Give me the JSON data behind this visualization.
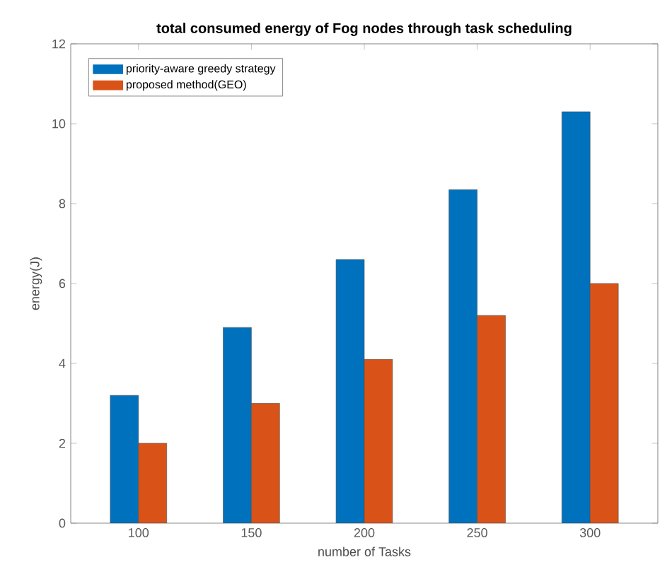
{
  "chart_data": {
    "type": "bar",
    "title": "total consumed energy of Fog nodes through task scheduling",
    "xlabel": "number of Tasks",
    "ylabel": "energy(J)",
    "categories": [
      "100",
      "150",
      "200",
      "250",
      "300"
    ],
    "series": [
      {
        "name": "priority-aware greedy strategy",
        "color": "#0072bd",
        "values": [
          3.2,
          4.9,
          6.6,
          8.35,
          10.3
        ]
      },
      {
        "name": "proposed method(GEO)",
        "color": "#d95319",
        "values": [
          2.0,
          3.0,
          4.1,
          5.2,
          6.0
        ]
      }
    ],
    "ylim": [
      0,
      12
    ],
    "yticks": [
      0,
      2,
      4,
      6,
      8,
      10,
      12
    ],
    "legend": "top left"
  }
}
